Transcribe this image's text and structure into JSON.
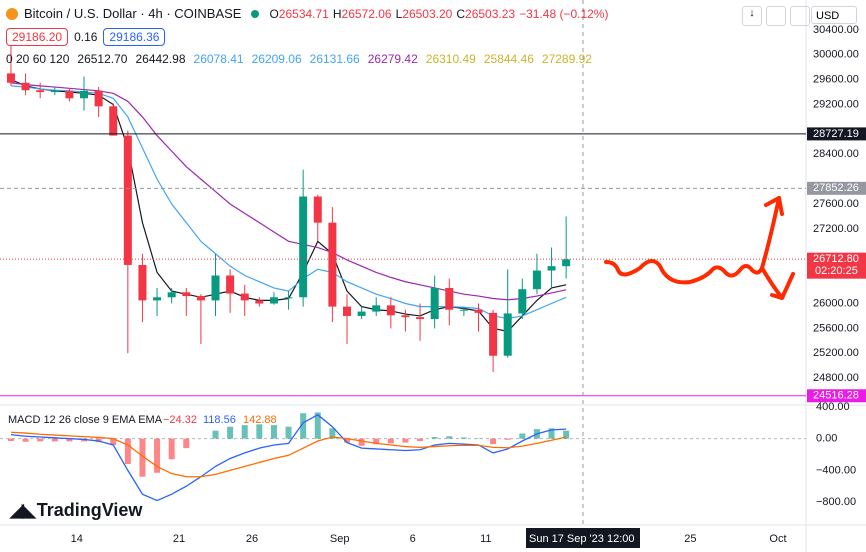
{
  "header": {
    "symbol": "Bitcoin / U.S. Dollar · 4h · COINBASE",
    "ohlc": [
      {
        "key": "O",
        "value": "26534.71"
      },
      {
        "key": "H",
        "value": "26572.06"
      },
      {
        "key": "L",
        "value": "26503.20"
      },
      {
        "key": "C",
        "value": "26503.23"
      }
    ],
    "change": "−31.48 (−0.12%)",
    "sell": "29186.20",
    "spread": "0.16",
    "buy": "29186.36",
    "currency": "USD"
  },
  "indicators": {
    "label": "0 20 60 120",
    "values": [
      {
        "text": "26512.70",
        "color": "#131722"
      },
      {
        "text": "26442.98",
        "color": "#131722"
      },
      {
        "text": "26078.41",
        "color": "#42a5f5"
      },
      {
        "text": "26209.06",
        "color": "#42a5f5"
      },
      {
        "text": "26131.66",
        "color": "#42a5f5"
      },
      {
        "text": "26279.42",
        "color": "#9c27b0"
      },
      {
        "text": "26310.49",
        "color": "#c9b42c"
      },
      {
        "text": "25844.46",
        "color": "#c9b42c"
      },
      {
        "text": "27289.92",
        "color": "#c9b42c"
      }
    ]
  },
  "chart_data": [
    {
      "type": "candlestick",
      "x": [
        "2023-08-09 12:00",
        "2023-08-10 12:00",
        "2023-08-11 12:00",
        "2023-08-12 12:00",
        "2023-08-13 12:00",
        "2023-08-14 12:00",
        "2023-08-15 12:00",
        "2023-08-16 12:00",
        "2023-08-17 12:00",
        "2023-08-18 12:00",
        "2023-08-19 12:00",
        "2023-08-20 12:00",
        "2023-08-21 12:00",
        "2023-08-22 12:00",
        "2023-08-23 12:00",
        "2023-08-24 12:00",
        "2023-08-25 12:00",
        "2023-08-26 12:00",
        "2023-08-27 12:00",
        "2023-08-28 12:00",
        "2023-08-29 12:00",
        "2023-08-30 12:00",
        "2023-08-31 12:00",
        "2023-09-01 12:00",
        "2023-09-02 12:00",
        "2023-09-03 12:00",
        "2023-09-04 12:00",
        "2023-09-05 12:00",
        "2023-09-06 12:00",
        "2023-09-07 12:00",
        "2023-09-08 12:00",
        "2023-09-09 12:00",
        "2023-09-10 12:00",
        "2023-09-11 12:00",
        "2023-09-12 12:00",
        "2023-09-13 12:00",
        "2023-09-14 12:00",
        "2023-09-15 12:00",
        "2023-09-16 12:00"
      ],
      "open": [
        29700,
        29550,
        29430,
        29400,
        29420,
        29300,
        29420,
        29170,
        28700,
        26620,
        26050,
        26100,
        26180,
        26120,
        26050,
        26450,
        26160,
        26050,
        26000,
        26100,
        26100,
        27720,
        27300,
        25950,
        25800,
        25870,
        25970,
        25810,
        25780,
        25750,
        26250,
        25900,
        25900,
        25850,
        25160,
        25840,
        26230,
        26530,
        26600
      ],
      "high": [
        30200,
        29700,
        29550,
        29480,
        29450,
        29650,
        29480,
        29220,
        28780,
        26800,
        26250,
        26250,
        26250,
        26150,
        26800,
        26550,
        26300,
        26100,
        26180,
        26200,
        28150,
        27750,
        27550,
        26150,
        25950,
        26100,
        26100,
        25900,
        26000,
        26450,
        26400,
        25950,
        26000,
        25900,
        26550,
        26400,
        26800,
        26900,
        27400
      ],
      "low": [
        29500,
        29350,
        29300,
        29350,
        29250,
        29100,
        29000,
        28700,
        25200,
        25700,
        25800,
        26000,
        25800,
        25350,
        25800,
        25850,
        25800,
        25950,
        25980,
        25900,
        25950,
        27000,
        25700,
        25350,
        25750,
        25800,
        25600,
        25550,
        25400,
        25600,
        25650,
        25800,
        25550,
        24900,
        25130,
        25750,
        26150,
        26250,
        26400
      ],
      "close": [
        29550,
        29430,
        29400,
        29420,
        29300,
        29420,
        29170,
        28700,
        26620,
        26050,
        26100,
        26180,
        26120,
        26050,
        26450,
        26160,
        26050,
        26000,
        26100,
        26100,
        27720,
        27300,
        25950,
        25800,
        25870,
        25970,
        25810,
        25780,
        25750,
        26250,
        25900,
        25900,
        25850,
        25160,
        25840,
        26230,
        26530,
        26600,
        26710
      ],
      "up_color": "#089981",
      "down_color": "#f23645",
      "series": [
        {
          "color": "#131722",
          "values": [
            29600,
            29500,
            29450,
            29420,
            29400,
            29380,
            29350,
            29200,
            28500,
            27300,
            26500,
            26200,
            26150,
            26100,
            26150,
            26200,
            26100,
            26050,
            26050,
            26080,
            26500,
            27000,
            26800,
            26200,
            25950,
            25900,
            25880,
            25830,
            25800,
            25900,
            25950,
            25920,
            25880,
            25600,
            25550,
            25800,
            26050,
            26250,
            26300
          ]
        },
        {
          "color": "#42a5f5",
          "values": [
            29500,
            29480,
            29450,
            29430,
            29420,
            29400,
            29380,
            29300,
            29000,
            28500,
            28000,
            27600,
            27300,
            27000,
            26800,
            26600,
            26450,
            26350,
            26250,
            26200,
            26400,
            26550,
            26500,
            26350,
            26250,
            26150,
            26080,
            26000,
            25950,
            25950,
            25950,
            25940,
            25920,
            25800,
            25760,
            25800,
            25900,
            26000,
            26100
          ]
        },
        {
          "color": "#9c27b0",
          "values": [
            29550,
            29520,
            29500,
            29480,
            29460,
            29440,
            29420,
            29380,
            29250,
            29000,
            28700,
            28450,
            28200,
            28000,
            27800,
            27600,
            27450,
            27300,
            27150,
            27000,
            26950,
            26900,
            26820,
            26700,
            26600,
            26500,
            26420,
            26350,
            26300,
            26250,
            26200,
            26150,
            26120,
            26080,
            26060,
            26080,
            26120,
            26170,
            26220
          ]
        }
      ],
      "xlim": [
        "2023-08-08 18:00",
        "2023-10-02 22:00"
      ],
      "xticks": [
        {
          "value": "2023-08-14",
          "label": "14"
        },
        {
          "value": "2023-08-21",
          "label": "21"
        },
        {
          "value": "2023-08-26",
          "label": "26"
        },
        {
          "value": "2023-09-01",
          "label": "Sep"
        },
        {
          "value": "2023-09-06",
          "label": "6"
        },
        {
          "value": "2023-09-11",
          "label": "11"
        },
        {
          "value": "2023-09-25",
          "label": "25"
        },
        {
          "value": "2023-10-01",
          "label": "Oct"
        }
      ],
      "crosshair_label": "Sun 17 Sep '23",
      "crosshair_time": "12:00",
      "ylim": [
        24400,
        30800
      ],
      "yticks": [
        {
          "value": 30400,
          "label": "30400.00"
        },
        {
          "value": 30000,
          "label": "30000.00"
        },
        {
          "value": 29600,
          "label": "29600.00"
        },
        {
          "value": 29200,
          "label": "29200.00"
        },
        {
          "value": 28400,
          "label": "28400.00"
        },
        {
          "value": 27600,
          "label": "27600.00"
        },
        {
          "value": 27200,
          "label": "27200.00"
        },
        {
          "value": 26000,
          "label": "26000.00"
        },
        {
          "value": 25600,
          "label": "25600.00"
        },
        {
          "value": 25200,
          "label": "25200.00"
        },
        {
          "value": 24800,
          "label": "24800.00"
        }
      ],
      "price_lines": [
        {
          "value": 28727.19,
          "color": "#131722",
          "style": "solid"
        },
        {
          "value": 27852.26,
          "color": "#9598a1",
          "style": "dashed"
        },
        {
          "value": 26712.8,
          "label": "26712.80",
          "countdown": "02:20:25",
          "color": "#f23645",
          "style": "dotted"
        },
        {
          "value": 24516.28,
          "color": "#e91ee6",
          "style": "solid"
        }
      ]
    },
    {
      "type": "macd",
      "title": "MACD 12 26 close 9 EMA EMA",
      "legend": [
        {
          "text": "−24.32",
          "color": "#f23645"
        },
        {
          "text": "118.56",
          "color": "#2962ff"
        },
        {
          "text": "142.88",
          "color": "#ff6d00"
        }
      ],
      "x": [
        "2023-08-09 12:00",
        "2023-08-10 12:00",
        "2023-08-11 12:00",
        "2023-08-12 12:00",
        "2023-08-13 12:00",
        "2023-08-14 12:00",
        "2023-08-15 12:00",
        "2023-08-16 12:00",
        "2023-08-17 12:00",
        "2023-08-18 12:00",
        "2023-08-19 12:00",
        "2023-08-20 12:00",
        "2023-08-21 12:00",
        "2023-08-22 12:00",
        "2023-08-23 12:00",
        "2023-08-24 12:00",
        "2023-08-25 12:00",
        "2023-08-26 12:00",
        "2023-08-27 12:00",
        "2023-08-28 12:00",
        "2023-08-29 12:00",
        "2023-08-30 12:00",
        "2023-08-31 12:00",
        "2023-09-01 12:00",
        "2023-09-02 12:00",
        "2023-09-03 12:00",
        "2023-09-04 12:00",
        "2023-09-05 12:00",
        "2023-09-06 12:00",
        "2023-09-07 12:00",
        "2023-09-08 12:00",
        "2023-09-09 12:00",
        "2023-09-10 12:00",
        "2023-09-11 12:00",
        "2023-09-12 12:00",
        "2023-09-13 12:00",
        "2023-09-14 12:00",
        "2023-09-15 12:00",
        "2023-09-16 12:00"
      ],
      "histogram": [
        -30,
        -40,
        -35,
        -35,
        -35,
        -35,
        -45,
        -80,
        -320,
        -480,
        -430,
        -260,
        -120,
        0,
        100,
        150,
        170,
        180,
        170,
        150,
        320,
        330,
        130,
        -50,
        -90,
        -70,
        -60,
        -50,
        -30,
        20,
        30,
        15,
        5,
        -70,
        -15,
        65,
        120,
        130,
        100
      ],
      "hist_up_color": "#26a69a",
      "hist_down_color": "#ff5252",
      "series": [
        {
          "name": "MACD",
          "color": "#2962ff",
          "values": [
            50,
            30,
            20,
            10,
            0,
            -10,
            -30,
            -80,
            -400,
            -700,
            -780,
            -700,
            -600,
            -480,
            -350,
            -250,
            -180,
            -120,
            -80,
            -60,
            200,
            300,
            150,
            -50,
            -120,
            -130,
            -140,
            -150,
            -140,
            -80,
            -60,
            -70,
            -80,
            -180,
            -130,
            -30,
            60,
            110,
            120
          ]
        },
        {
          "name": "Signal",
          "color": "#ff6d00",
          "values": [
            80,
            70,
            55,
            45,
            35,
            25,
            15,
            0,
            -80,
            -220,
            -350,
            -440,
            -480,
            -480,
            -450,
            -400,
            -350,
            -300,
            -250,
            -210,
            -120,
            -30,
            20,
            0,
            -30,
            -60,
            -80,
            -100,
            -110,
            -100,
            -90,
            -85,
            -85,
            -110,
            -115,
            -95,
            -60,
            -20,
            20
          ]
        }
      ],
      "ylim": [
        -1000,
        600
      ],
      "yticks": [
        {
          "value": 400,
          "label": "400.00"
        },
        {
          "value": 0,
          "label": "0.00"
        },
        {
          "value": -400,
          "label": "−400.00"
        },
        {
          "value": -800,
          "label": "−800.00"
        }
      ]
    }
  ],
  "branding": "TradingView"
}
